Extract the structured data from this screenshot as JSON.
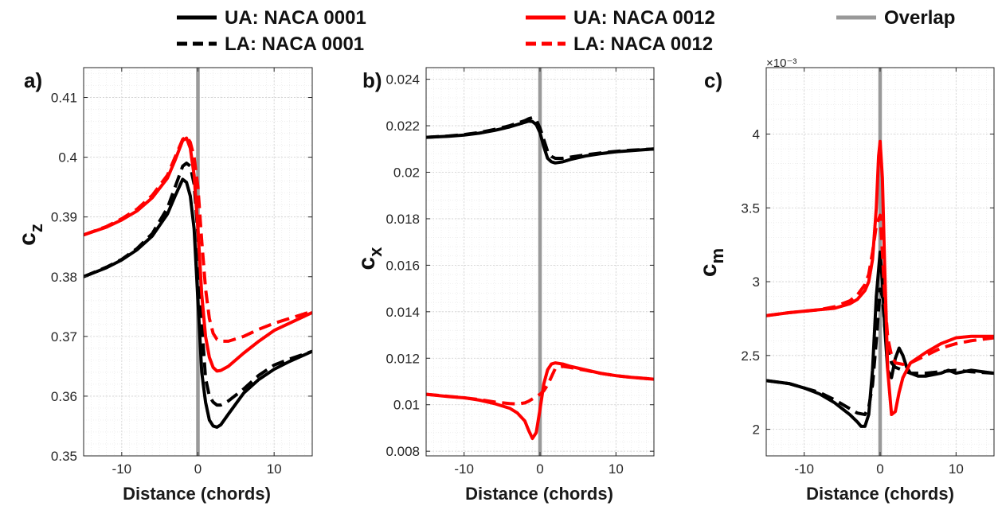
{
  "legend": {
    "entries": [
      {
        "label": "UA: NACA 0001",
        "color": "#000000",
        "dash": "solid"
      },
      {
        "label": "LA: NACA 0001",
        "color": "#000000",
        "dash": "dashed"
      },
      {
        "label": "UA: NACA 0012",
        "color": "#ff0000",
        "dash": "solid"
      },
      {
        "label": "LA: NACA 0012",
        "color": "#ff0000",
        "dash": "dashed"
      },
      {
        "label": "Overlap",
        "color": "#999999",
        "dash": "solid"
      }
    ]
  },
  "chart_data": [
    {
      "type": "line",
      "panel_label": "a)",
      "ylabel": "c",
      "ylabel_sub": "z",
      "xlabel": "Distance (chords)",
      "xlim": [
        -15,
        15
      ],
      "ylim": [
        0.35,
        0.415
      ],
      "xticks": [
        -10,
        0,
        10
      ],
      "yticks": [
        0.35,
        0.36,
        0.37,
        0.38,
        0.39,
        0.4,
        0.41
      ],
      "ytick_labels": [
        "0.35",
        "0.36",
        "0.37",
        "0.38",
        "0.39",
        "0.4",
        "0.41"
      ],
      "exponent_label": "",
      "grid": true,
      "overlap_x": 0,
      "series": [
        {
          "name": "UA: NACA 0001",
          "color": "#000000",
          "dash": "solid",
          "x": [
            -15,
            -12,
            -10,
            -8,
            -6,
            -4,
            -3,
            -2,
            -1.5,
            -1,
            -0.5,
            0,
            0.5,
            1,
            1.5,
            2,
            2.5,
            3,
            4,
            6,
            8,
            10,
            12,
            15
          ],
          "y": [
            0.38,
            0.3815,
            0.3828,
            0.3845,
            0.3868,
            0.3905,
            0.3935,
            0.3963,
            0.3958,
            0.3935,
            0.388,
            0.376,
            0.364,
            0.359,
            0.356,
            0.355,
            0.3548,
            0.3552,
            0.357,
            0.3605,
            0.3628,
            0.3645,
            0.3658,
            0.3675
          ]
        },
        {
          "name": "LA: NACA 0001",
          "color": "#000000",
          "dash": "dashed",
          "x": [
            -15,
            -12,
            -10,
            -8,
            -6,
            -4,
            -3,
            -2,
            -1.5,
            -1,
            -0.5,
            0,
            0.5,
            1,
            1.5,
            2,
            2.5,
            3,
            4,
            6,
            8,
            10,
            12,
            15
          ],
          "y": [
            0.38,
            0.3816,
            0.3829,
            0.3847,
            0.3872,
            0.3915,
            0.395,
            0.3985,
            0.399,
            0.3985,
            0.3955,
            0.387,
            0.372,
            0.363,
            0.36,
            0.359,
            0.3585,
            0.3585,
            0.3592,
            0.3612,
            0.3635,
            0.3652,
            0.3662,
            0.3675
          ]
        },
        {
          "name": "UA: NACA 0012",
          "color": "#ff0000",
          "dash": "solid",
          "x": [
            -15,
            -12,
            -10,
            -8,
            -6,
            -4,
            -3,
            -2,
            -1.5,
            -1,
            -0.5,
            0,
            0.5,
            1,
            1.5,
            2,
            2.5,
            3,
            4,
            6,
            8,
            10,
            12,
            15
          ],
          "y": [
            0.387,
            0.3883,
            0.3895,
            0.391,
            0.3932,
            0.3965,
            0.3995,
            0.4028,
            0.4032,
            0.4015,
            0.397,
            0.388,
            0.377,
            0.37,
            0.3665,
            0.3648,
            0.3642,
            0.3643,
            0.365,
            0.3672,
            0.3692,
            0.371,
            0.3722,
            0.374
          ]
        },
        {
          "name": "LA: NACA 0012",
          "color": "#ff0000",
          "dash": "dashed",
          "x": [
            -15,
            -12,
            -10,
            -8,
            -6,
            -4,
            -3,
            -2,
            -1.5,
            -1,
            -0.5,
            0,
            0.5,
            1,
            1.5,
            2,
            2.5,
            3,
            4,
            6,
            8,
            10,
            12,
            15
          ],
          "y": [
            0.387,
            0.3884,
            0.3897,
            0.3913,
            0.3936,
            0.397,
            0.4,
            0.403,
            0.4035,
            0.4025,
            0.4,
            0.395,
            0.386,
            0.378,
            0.373,
            0.3705,
            0.3695,
            0.3692,
            0.3692,
            0.37,
            0.3712,
            0.3722,
            0.373,
            0.3742
          ]
        }
      ]
    },
    {
      "type": "line",
      "panel_label": "b)",
      "ylabel": "c",
      "ylabel_sub": "x",
      "xlabel": "Distance (chords)",
      "xlim": [
        -15,
        15
      ],
      "ylim": [
        0.0078,
        0.0245
      ],
      "xticks": [
        -10,
        0,
        10
      ],
      "yticks": [
        0.008,
        0.01,
        0.012,
        0.014,
        0.016,
        0.018,
        0.02,
        0.022,
        0.024
      ],
      "ytick_labels": [
        "0.008",
        "0.01",
        "0.012",
        "0.014",
        "0.016",
        "0.018",
        "0.02",
        "0.022",
        "0.024"
      ],
      "exponent_label": "",
      "grid": true,
      "overlap_x": 0,
      "series": [
        {
          "name": "UA: NACA 0001",
          "color": "#000000",
          "dash": "solid",
          "x": [
            -15,
            -12,
            -10,
            -8,
            -6,
            -4,
            -2,
            -1.5,
            -1,
            -0.5,
            0,
            0.5,
            1,
            1.5,
            2,
            3,
            4,
            6,
            8,
            10,
            12,
            15
          ],
          "y": [
            0.0215,
            0.02155,
            0.0216,
            0.02168,
            0.0218,
            0.02195,
            0.02215,
            0.0222,
            0.02218,
            0.02205,
            0.0217,
            0.0211,
            0.0206,
            0.02045,
            0.0204,
            0.02045,
            0.02055,
            0.0207,
            0.0208,
            0.02088,
            0.02093,
            0.021
          ]
        },
        {
          "name": "LA: NACA 0001",
          "color": "#000000",
          "dash": "dashed",
          "x": [
            -15,
            -12,
            -10,
            -8,
            -6,
            -4,
            -2,
            -1.5,
            -1,
            -0.5,
            0,
            0.5,
            1,
            1.5,
            2,
            3,
            4,
            6,
            8,
            10,
            12,
            15
          ],
          "y": [
            0.0215,
            0.02156,
            0.02162,
            0.02171,
            0.02184,
            0.022,
            0.02222,
            0.0223,
            0.02235,
            0.02225,
            0.0219,
            0.0214,
            0.0209,
            0.02068,
            0.0206,
            0.0206,
            0.02065,
            0.02075,
            0.02083,
            0.0209,
            0.02095,
            0.021
          ]
        },
        {
          "name": "UA: NACA 0012",
          "color": "#ff0000",
          "dash": "solid",
          "x": [
            -15,
            -12,
            -10,
            -8,
            -6,
            -4,
            -3,
            -2,
            -1.5,
            -1,
            -0.5,
            0,
            0.5,
            1,
            1.5,
            2,
            3,
            4,
            6,
            8,
            10,
            12,
            15
          ],
          "y": [
            0.01045,
            0.01035,
            0.0103,
            0.0102,
            0.01005,
            0.00985,
            0.00965,
            0.0093,
            0.0089,
            0.00855,
            0.0088,
            0.0098,
            0.0109,
            0.0115,
            0.01175,
            0.0118,
            0.01175,
            0.01165,
            0.0115,
            0.01135,
            0.01125,
            0.01118,
            0.0111
          ]
        },
        {
          "name": "LA: NACA 0012",
          "color": "#ff0000",
          "dash": "dashed",
          "x": [
            -15,
            -12,
            -10,
            -8,
            -6,
            -4,
            -3,
            -2,
            -1.5,
            -1,
            -0.5,
            0,
            0.5,
            1,
            1.5,
            2,
            3,
            4,
            6,
            8,
            10,
            12,
            15
          ],
          "y": [
            0.01045,
            0.01036,
            0.0103,
            0.01022,
            0.01012,
            0.01005,
            0.01003,
            0.01008,
            0.01015,
            0.01025,
            0.01035,
            0.01045,
            0.0106,
            0.01085,
            0.0112,
            0.01155,
            0.01165,
            0.0116,
            0.01148,
            0.01135,
            0.01125,
            0.01118,
            0.0111
          ]
        }
      ]
    },
    {
      "type": "line",
      "panel_label": "c)",
      "ylabel": "c",
      "ylabel_sub": "m",
      "xlabel": "Distance (chords)",
      "xlim": [
        -15,
        15
      ],
      "ylim": [
        1.82,
        4.45
      ],
      "xticks": [
        -10,
        0,
        10
      ],
      "yticks": [
        2,
        2.5,
        3,
        3.5,
        4
      ],
      "ytick_labels": [
        "2",
        "2.5",
        "3",
        "3.5",
        "4"
      ],
      "exponent_label": "×10⁻³",
      "grid": true,
      "overlap_x": 0,
      "series": [
        {
          "name": "UA: NACA 0001",
          "color": "#000000",
          "dash": "solid",
          "x": [
            -15,
            -12,
            -10,
            -8,
            -6,
            -4,
            -3,
            -2.5,
            -2,
            -1.5,
            -1,
            -0.5,
            0,
            0.3,
            0.6,
            1,
            1.5,
            2,
            2.5,
            3,
            3.5,
            4,
            5,
            6,
            8,
            9,
            10,
            12,
            15
          ],
          "y": [
            2.33,
            2.31,
            2.28,
            2.24,
            2.18,
            2.1,
            2.05,
            2.02,
            2.02,
            2.1,
            2.4,
            2.9,
            3.2,
            3.0,
            2.7,
            2.4,
            2.35,
            2.48,
            2.55,
            2.5,
            2.42,
            2.38,
            2.36,
            2.36,
            2.38,
            2.4,
            2.38,
            2.4,
            2.38
          ]
        },
        {
          "name": "LA: NACA 0001",
          "color": "#000000",
          "dash": "dashed",
          "x": [
            -15,
            -12,
            -10,
            -8,
            -6,
            -4,
            -3,
            -2,
            -1.5,
            -1,
            -0.5,
            0,
            0.3,
            0.6,
            1,
            1.5,
            2,
            3,
            4,
            6,
            8,
            10,
            12,
            15
          ],
          "y": [
            2.33,
            2.31,
            2.28,
            2.25,
            2.2,
            2.14,
            2.11,
            2.1,
            2.15,
            2.3,
            2.6,
            2.95,
            2.9,
            2.7,
            2.55,
            2.45,
            2.42,
            2.4,
            2.38,
            2.38,
            2.39,
            2.4,
            2.39,
            2.38
          ]
        },
        {
          "name": "UA: NACA 0012",
          "color": "#ff0000",
          "dash": "solid",
          "x": [
            -15,
            -12,
            -10,
            -8,
            -6,
            -4,
            -3,
            -2,
            -1.5,
            -1,
            -0.5,
            -0.2,
            0,
            0.3,
            0.6,
            1,
            1.5,
            2,
            2.5,
            3,
            4,
            6,
            8,
            10,
            12,
            15
          ],
          "y": [
            2.77,
            2.79,
            2.8,
            2.81,
            2.82,
            2.85,
            2.88,
            2.94,
            3.0,
            3.15,
            3.5,
            3.85,
            3.95,
            3.7,
            3.1,
            2.4,
            2.1,
            2.12,
            2.25,
            2.35,
            2.45,
            2.52,
            2.58,
            2.62,
            2.63,
            2.63
          ]
        },
        {
          "name": "LA: NACA 0012",
          "color": "#ff0000",
          "dash": "dashed",
          "x": [
            -15,
            -12,
            -10,
            -8,
            -6,
            -4,
            -3,
            -2,
            -1.5,
            -1,
            -0.5,
            0,
            0.3,
            0.6,
            1,
            1.5,
            2,
            3,
            4,
            6,
            8,
            10,
            12,
            15
          ],
          "y": [
            2.77,
            2.79,
            2.8,
            2.81,
            2.83,
            2.87,
            2.91,
            2.98,
            3.05,
            3.2,
            3.38,
            3.45,
            3.2,
            2.9,
            2.62,
            2.5,
            2.45,
            2.44,
            2.45,
            2.5,
            2.55,
            2.58,
            2.6,
            2.62
          ]
        }
      ]
    }
  ]
}
